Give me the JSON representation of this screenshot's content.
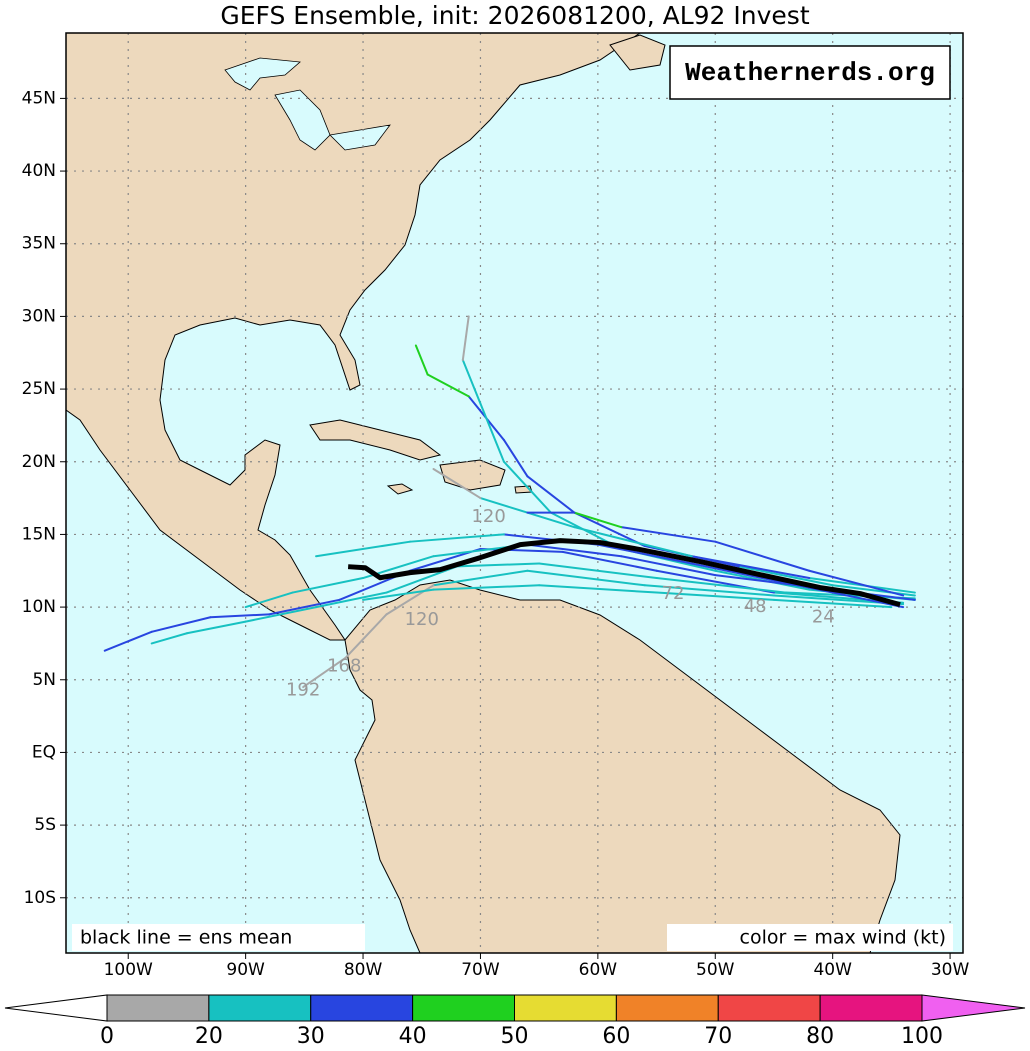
{
  "map": {
    "title": "GEFS Ensemble, init: 2026081200, AL92 Invest",
    "watermark": "Weathernerds.org",
    "note_left": "black line = ens mean",
    "note_right": "color = max wind (kt)",
    "xlim": [
      -105.3,
      -28.9
    ],
    "ylim": [
      -13.8,
      49.5
    ],
    "xticks": [
      {
        "value": -100,
        "label": "100W"
      },
      {
        "value": -90,
        "label": "90W"
      },
      {
        "value": -80,
        "label": "80W"
      },
      {
        "value": -70,
        "label": "70W"
      },
      {
        "value": -60,
        "label": "60W"
      },
      {
        "value": -50,
        "label": "50W"
      },
      {
        "value": -40,
        "label": "40W"
      },
      {
        "value": -30,
        "label": "30W"
      }
    ],
    "yticks": [
      {
        "value": 45,
        "label": "45N"
      },
      {
        "value": 40,
        "label": "40N"
      },
      {
        "value": 35,
        "label": "35N"
      },
      {
        "value": 30,
        "label": "30N"
      },
      {
        "value": 25,
        "label": "25N"
      },
      {
        "value": 20,
        "label": "20N"
      },
      {
        "value": 15,
        "label": "15N"
      },
      {
        "value": 10,
        "label": "10N"
      },
      {
        "value": 5,
        "label": "5N"
      },
      {
        "value": 0,
        "label": "EQ"
      },
      {
        "value": -5,
        "label": "5S"
      },
      {
        "value": -10,
        "label": "10S"
      }
    ],
    "grid": true,
    "colorbar": {
      "bounds": [
        0,
        20,
        30,
        40,
        50,
        60,
        70,
        80,
        100
      ],
      "colors": [
        "#a8a8a8",
        "#17c1c1",
        "#2845e0",
        "#1fd01f",
        "#e6dc32",
        "#f08228",
        "#f04646",
        "#e6147f"
      ],
      "under_color": "#ffffff",
      "over_color": "#f060f0"
    },
    "mean_track": {
      "color": "#000000",
      "lon": [
        -34.26,
        -37.66,
        -41.07,
        -46.18,
        -51.29,
        -56.4,
        -59.8,
        -63.21,
        -66.61,
        -70.02,
        -73.43,
        -75.99,
        -78.55,
        -79.82,
        -81.27
      ],
      "lat": [
        10.17,
        10.93,
        11.34,
        12.23,
        13.13,
        13.96,
        14.44,
        14.57,
        14.3,
        13.4,
        12.58,
        12.37,
        12.02,
        12.71,
        12.78
      ]
    },
    "tracks": [
      {
        "lon": [
          -33,
          -40,
          -48,
          -56,
          -62,
          -66,
          -68,
          -71,
          -74.5,
          -75.5
        ],
        "lat": [
          10.8,
          11.5,
          12.8,
          14.2,
          16.5,
          19,
          21.5,
          24.5,
          26,
          28
        ],
        "wind": [
          22,
          25,
          28,
          32,
          34,
          36,
          33,
          31,
          42,
          45
        ]
      },
      {
        "lon": [
          -33,
          -42,
          -50,
          -58,
          -64,
          -68,
          -70,
          -71.5,
          -71
        ],
        "lat": [
          10.5,
          11.2,
          12.5,
          14,
          16.5,
          20,
          24,
          27,
          30
        ],
        "wind": [
          21,
          24,
          27,
          28,
          29,
          28,
          26,
          24,
          19
        ]
      },
      {
        "lon": [
          -34,
          -45,
          -55,
          -63,
          -70,
          -76,
          -82,
          -88,
          -93,
          -98,
          -102
        ],
        "lat": [
          10.3,
          11,
          12.5,
          13.8,
          14,
          12.5,
          10.5,
          9.5,
          9.3,
          8.3,
          7
        ],
        "wind": [
          23,
          27,
          30,
          32,
          33,
          35,
          31,
          32,
          33,
          34,
          34
        ]
      },
      {
        "lon": [
          -33,
          -44,
          -55,
          -65,
          -72,
          -78,
          -84,
          -90,
          -95,
          -98
        ],
        "lat": [
          10.6,
          11,
          12,
          13,
          12.8,
          11,
          10,
          9,
          8.2,
          7.5
        ],
        "wind": [
          22,
          25,
          27,
          28,
          26,
          24,
          23,
          22,
          21,
          20
        ]
      },
      {
        "lon": [
          -34,
          -45,
          -56,
          -66,
          -74,
          -78,
          -81.5,
          -85.1
        ],
        "lat": [
          10.2,
          10.8,
          11.5,
          12.5,
          11.5,
          9.5,
          6.5,
          4.5
        ],
        "wind": [
          21,
          24,
          26,
          24,
          22,
          19,
          18,
          17
        ]
      },
      {
        "lon": [
          -33,
          -42,
          -52,
          -62,
          -70,
          -74
        ],
        "lat": [
          11,
          12,
          13.5,
          15.5,
          17.5,
          19.5
        ],
        "wind": [
          24,
          28,
          31,
          28,
          22,
          17
        ]
      },
      {
        "lon": [
          -35,
          -45,
          -55,
          -65,
          -74,
          -80
        ],
        "lat": [
          10,
          10.5,
          11,
          11.5,
          11.2,
          10.5
        ],
        "wind": [
          20,
          23,
          25,
          24,
          22,
          21
        ]
      },
      {
        "lon": [
          -34,
          -42,
          -50,
          -58,
          -62,
          -66
        ],
        "lat": [
          10.8,
          12.5,
          14.5,
          15.5,
          16.5,
          16.5
        ],
        "wind": [
          28,
          32,
          35,
          38,
          42,
          36
        ]
      },
      {
        "lon": [
          -33,
          -41,
          -50,
          -58,
          -66,
          -74,
          -80,
          -86,
          -90
        ],
        "lat": [
          10.5,
          11.3,
          12.2,
          13.5,
          14.3,
          13.5,
          12,
          11,
          10
        ],
        "wind": [
          25,
          30,
          33,
          35,
          31,
          28,
          25,
          22,
          20
        ]
      },
      {
        "lon": [
          -34,
          -43,
          -52,
          -60,
          -68,
          -76,
          -84
        ],
        "lat": [
          10,
          11.5,
          13,
          14.3,
          15,
          14.5,
          13.5
        ],
        "wind": [
          26,
          31,
          34,
          36,
          32,
          29,
          25
        ]
      }
    ],
    "hour_labels": [
      {
        "text": "120",
        "lon": -69.3,
        "lat": 16.2
      },
      {
        "text": "120",
        "lon": -75,
        "lat": 9.1
      },
      {
        "text": "168",
        "lon": -81.6,
        "lat": 5.9
      },
      {
        "text": "192",
        "lon": -85.1,
        "lat": 4.25
      },
      {
        "text": "72",
        "lon": -53.6,
        "lat": 10.9
      },
      {
        "text": "48",
        "lon": -46.6,
        "lat": 10
      },
      {
        "text": "24",
        "lon": -40.8,
        "lat": 9.3
      }
    ]
  }
}
